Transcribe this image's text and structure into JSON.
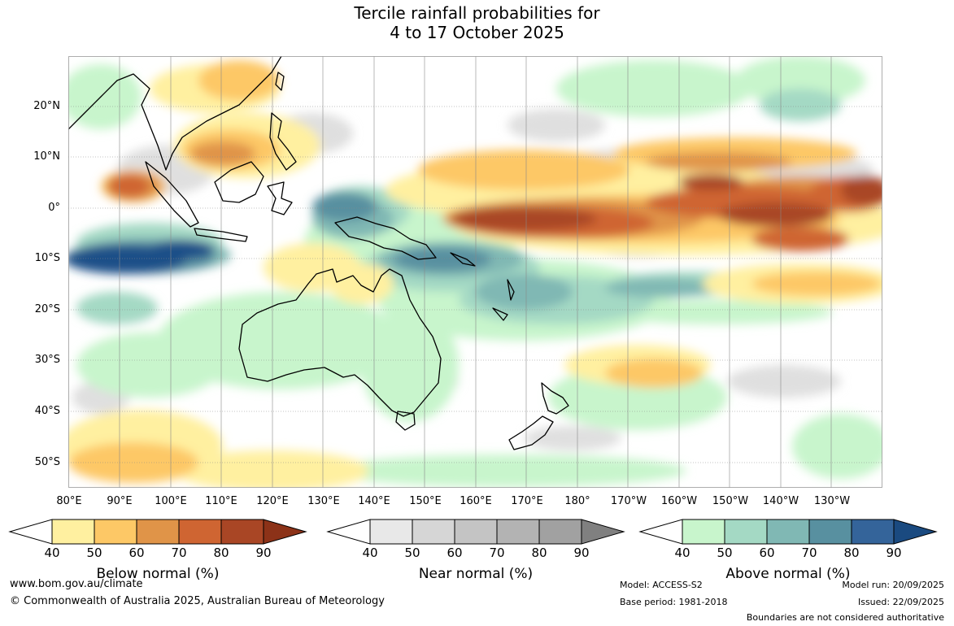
{
  "title": {
    "line1": "Tercile rainfall probabilities for",
    "line2": "4 to 17 October 2025"
  },
  "map": {
    "lat_labels": [
      "20°N",
      "10°N",
      "0°",
      "10°S",
      "20°S",
      "30°S",
      "40°S",
      "50°S"
    ],
    "lon_labels": [
      "80°E",
      "90°E",
      "100°E",
      "110°E",
      "120°E",
      "130°E",
      "140°E",
      "150°E",
      "160°E",
      "170°E",
      "180°",
      "170°W",
      "160°W",
      "150°W",
      "140°W",
      "130°W"
    ]
  },
  "legends": [
    {
      "title": "Below normal (%)",
      "ticks": [
        "40",
        "50",
        "60",
        "70",
        "80",
        "90"
      ],
      "colors": [
        "#fff0a0",
        "#fdc866",
        "#e09448",
        "#cf6532",
        "#a94625",
        "#8c3218"
      ]
    },
    {
      "title": "Near normal (%)",
      "ticks": [
        "40",
        "50",
        "60",
        "70",
        "80",
        "90"
      ],
      "colors": [
        "#e8e8e8",
        "#d6d6d6",
        "#c4c4c4",
        "#b3b3b3",
        "#a1a1a1",
        "#808080"
      ]
    },
    {
      "title": "Above normal (%)",
      "ticks": [
        "40",
        "50",
        "60",
        "70",
        "80",
        "90"
      ],
      "colors": [
        "#c8f5cc",
        "#a4d9c4",
        "#80b8b4",
        "#5890a0",
        "#34649a",
        "#1a4a80"
      ]
    }
  ],
  "footer": {
    "url": "www.bom.gov.au/climate",
    "copyright": "© Commonwealth of Australia 2025, Australian Bureau of Meteorology",
    "model": "Model: ACCESS-S2",
    "base_period": "Base period: 1981-2018",
    "model_run": "Model run: 20/09/2025",
    "issued": "Issued: 22/09/2025",
    "disclaimer": "Boundaries are not considered authoritative"
  }
}
